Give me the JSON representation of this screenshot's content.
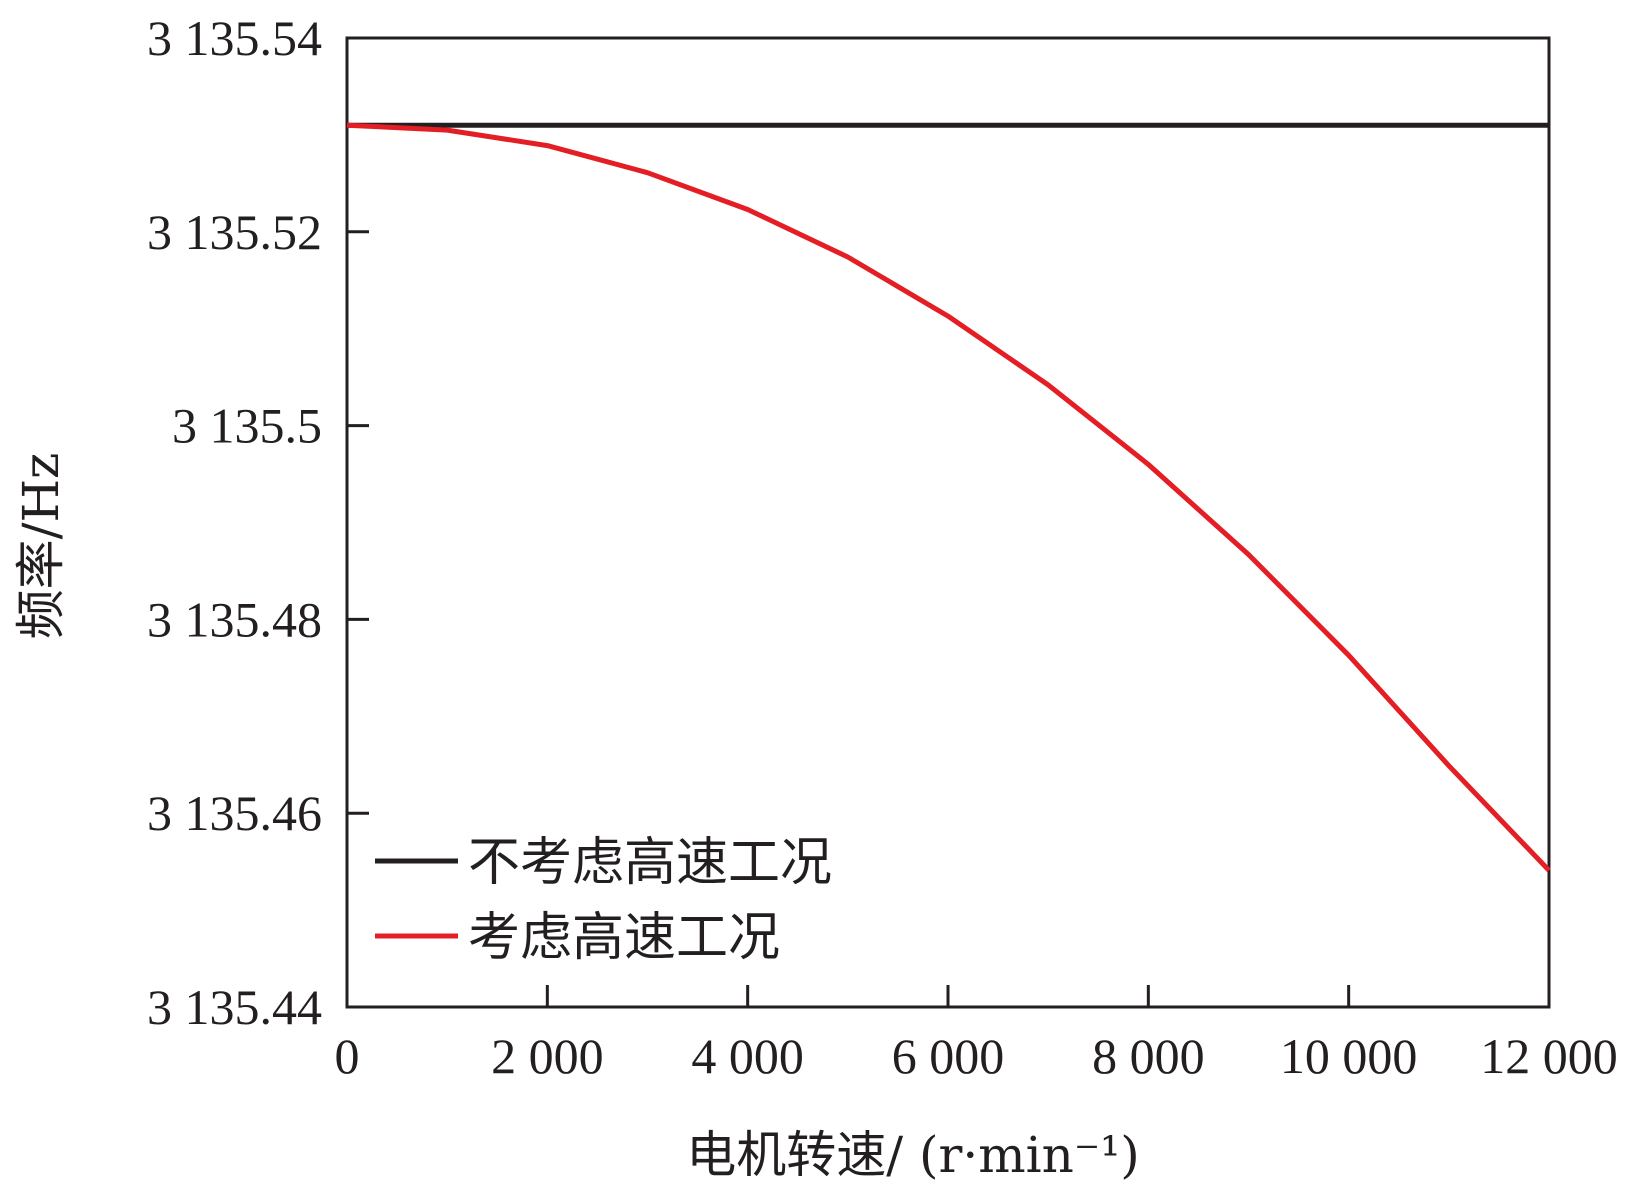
{
  "chart_data": {
    "type": "line",
    "xlabel": "电机转速/ (r·min⁻¹)",
    "ylabel": "频率/Hz",
    "xlim": [
      0,
      12000
    ],
    "ylim": [
      3135.44,
      3135.54
    ],
    "x_ticks": [
      0,
      2000,
      4000,
      6000,
      8000,
      10000,
      12000
    ],
    "x_tick_labels": [
      "0",
      "2 000",
      "4 000",
      "6 000",
      "8 000",
      "10 000",
      "12 000"
    ],
    "y_ticks": [
      3135.44,
      3135.46,
      3135.48,
      3135.5,
      3135.52,
      3135.54
    ],
    "y_tick_labels": [
      "3 135.44",
      "3 135.46",
      "3 135.48",
      "3 135.5",
      "3 135.52",
      "3 135.54"
    ],
    "grid": false,
    "legend_position": "bottom-left",
    "series": [
      {
        "name": "不考虑高速工况",
        "color": "#231f20",
        "x": [
          0,
          1000,
          2000,
          3000,
          4000,
          5000,
          6000,
          7000,
          8000,
          9000,
          10000,
          11000,
          12000
        ],
        "y": [
          3135.531,
          3135.531,
          3135.531,
          3135.531,
          3135.531,
          3135.531,
          3135.531,
          3135.531,
          3135.531,
          3135.531,
          3135.531,
          3135.531,
          3135.531
        ]
      },
      {
        "name": "考虑高速工况",
        "color": "#e31e24",
        "x": [
          0,
          1000,
          2000,
          3000,
          4000,
          5000,
          6000,
          7000,
          8000,
          9000,
          10000,
          11000,
          12000
        ],
        "y": [
          3135.531,
          3135.5305,
          3135.5289,
          3135.5261,
          3135.5223,
          3135.5174,
          3135.5113,
          3135.5042,
          3135.496,
          3135.4867,
          3135.4763,
          3135.4649,
          3135.4541
        ]
      }
    ]
  }
}
